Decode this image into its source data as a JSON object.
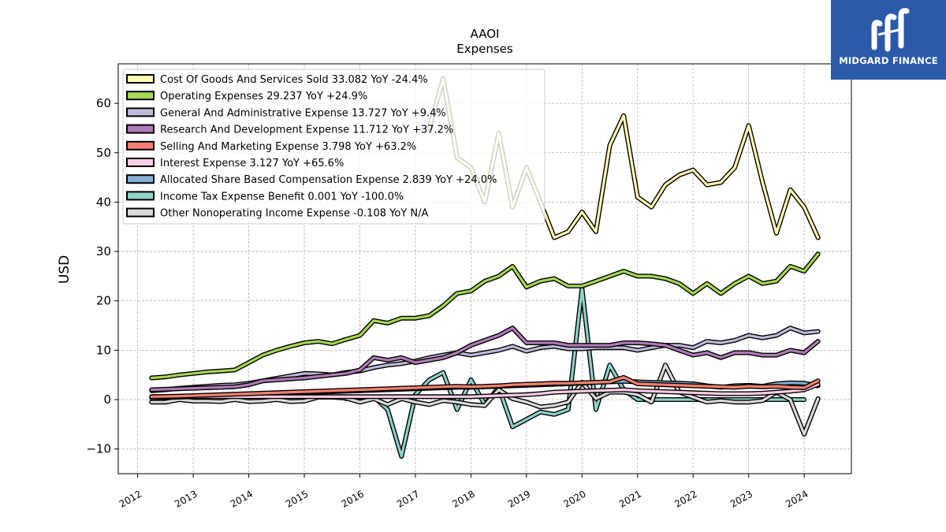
{
  "chart_data": {
    "type": "line",
    "title": "AAOI",
    "subtitle": "Expenses",
    "ylabel": "USD",
    "xlabel": "",
    "xlim": [
      2011.65,
      2024.85
    ],
    "ylim": [
      -15,
      68
    ],
    "yticks": [
      -10,
      0,
      10,
      20,
      30,
      40,
      50,
      60
    ],
    "ytick_labels": [
      "−10",
      "0",
      "10",
      "20",
      "30",
      "40",
      "50",
      "60"
    ],
    "xticks": [
      2012,
      2013,
      2014,
      2015,
      2016,
      2017,
      2018,
      2019,
      2020,
      2021,
      2022,
      2023,
      2024
    ],
    "grid": true,
    "legend_position": "top-left",
    "x": [
      2012.25,
      2012.5,
      2012.75,
      2013.0,
      2013.25,
      2013.5,
      2013.75,
      2014.0,
      2014.25,
      2014.5,
      2014.75,
      2015.0,
      2015.25,
      2015.5,
      2015.75,
      2016.0,
      2016.25,
      2016.5,
      2016.75,
      2017.0,
      2017.25,
      2017.5,
      2017.75,
      2018.0,
      2018.25,
      2018.5,
      2018.75,
      2019.0,
      2019.25,
      2019.5,
      2019.75,
      2020.0,
      2020.25,
      2020.5,
      2020.75,
      2021.0,
      2021.25,
      2021.5,
      2021.75,
      2022.0,
      2022.25,
      2022.5,
      2022.75,
      2023.0,
      2023.25,
      2023.5,
      2023.75,
      2024.0,
      2024.25
    ],
    "series": [
      {
        "name": "Cost Of Goods And Services Sold",
        "legend": "Cost Of Goods And Services Sold  33.082 YoY -24.4%",
        "color": "#ffffb3",
        "values": [
          null,
          null,
          null,
          null,
          null,
          null,
          null,
          null,
          null,
          null,
          null,
          null,
          null,
          null,
          null,
          null,
          null,
          null,
          null,
          null,
          55,
          65,
          49,
          47,
          40,
          54,
          39,
          47,
          40,
          32.8,
          34,
          38,
          34,
          51.5,
          57.5,
          41,
          39,
          43.5,
          45.5,
          46.5,
          43.5,
          44,
          47,
          55.5,
          44,
          33.7,
          42.5,
          39,
          32.8
        ]
      },
      {
        "name": "Operating Expenses",
        "legend": "Operating Expenses  29.237 YoY +24.9%",
        "color": "#a6d854",
        "values": [
          4.4,
          4.6,
          5.0,
          5.3,
          5.6,
          5.8,
          6.0,
          7.5,
          9.0,
          10.0,
          10.8,
          11.5,
          11.8,
          11.3,
          12.2,
          13.0,
          16.0,
          15.5,
          16.5,
          16.5,
          17.0,
          19.0,
          21.5,
          22.0,
          24.0,
          25.0,
          27.0,
          22.8,
          24.0,
          24.5,
          23.0,
          23.0,
          24.0,
          25.0,
          26.0,
          25.0,
          25.0,
          24.5,
          23.5,
          21.5,
          23.5,
          21.5,
          23.5,
          25.0,
          23.5,
          24.0,
          27.0,
          26.0,
          29.5
        ]
      },
      {
        "name": "General And Administrative Expense",
        "legend": "General And Administrative Expense  13.727 YoY +9.4%",
        "color": "#bebada",
        "values": [
          1.8,
          2.0,
          2.3,
          2.5,
          2.7,
          2.9,
          3.0,
          3.3,
          3.8,
          4.3,
          4.8,
          5.3,
          5.2,
          5.0,
          5.5,
          5.8,
          6.5,
          7.0,
          7.3,
          7.8,
          8.5,
          9.0,
          9.5,
          9.0,
          9.5,
          10.0,
          10.8,
          9.8,
          10.5,
          10.8,
          10.3,
          10.3,
          10.5,
          10.5,
          10.5,
          10.0,
          10.5,
          11.0,
          11.0,
          10.5,
          11.8,
          11.5,
          12.0,
          13.0,
          12.5,
          13.0,
          14.5,
          13.5,
          13.8
        ]
      },
      {
        "name": "Research And Development Expense",
        "legend": "Research And Development Expense  11.712 YoY +37.2%",
        "color": "#b07ab8",
        "values": [
          2.0,
          2.1,
          2.2,
          2.3,
          2.4,
          2.5,
          2.6,
          3.0,
          3.8,
          4.0,
          4.2,
          4.4,
          4.7,
          5.0,
          5.3,
          6.0,
          8.5,
          8.0,
          8.5,
          7.5,
          8.0,
          8.5,
          9.5,
          11.0,
          12.0,
          13.0,
          14.5,
          11.5,
          11.5,
          11.5,
          11.0,
          11.0,
          11.0,
          11.0,
          11.5,
          11.5,
          11.3,
          11.0,
          10.0,
          9.0,
          9.5,
          8.5,
          9.5,
          9.5,
          9.0,
          9.0,
          10.0,
          9.5,
          11.8
        ]
      },
      {
        "name": "Selling And Marketing Expense",
        "legend": "Selling And Marketing Expense  3.798 YoY +63.2%",
        "color": "#fb8072",
        "values": [
          0.6,
          0.65,
          0.7,
          0.8,
          0.9,
          1.0,
          1.1,
          1.2,
          1.3,
          1.4,
          1.5,
          1.6,
          1.7,
          1.8,
          1.9,
          2.0,
          2.1,
          2.2,
          2.3,
          2.4,
          2.5,
          2.6,
          2.7,
          2.6,
          2.7,
          2.8,
          3.0,
          3.1,
          3.2,
          3.3,
          3.3,
          3.4,
          3.5,
          3.6,
          4.5,
          3.2,
          3.1,
          3.0,
          2.9,
          2.8,
          2.7,
          2.6,
          2.5,
          2.7,
          2.6,
          2.7,
          2.5,
          2.4,
          3.8
        ]
      },
      {
        "name": "Interest Expense",
        "legend": "Interest Expense  3.127 YoY +65.6%",
        "color": "#fccde5",
        "values": [
          0.6,
          0.6,
          0.6,
          0.6,
          0.6,
          0.6,
          0.6,
          0.6,
          0.6,
          0.6,
          0.6,
          0.6,
          0.6,
          0.6,
          0.6,
          0.6,
          0.6,
          0.6,
          0.6,
          0.6,
          0.6,
          0.6,
          0.6,
          0.6,
          0.7,
          0.8,
          0.9,
          1.0,
          1.2,
          1.5,
          1.6,
          1.7,
          1.8,
          1.9,
          2.0,
          1.8,
          1.7,
          1.6,
          1.5,
          1.4,
          1.3,
          1.2,
          1.2,
          1.2,
          1.3,
          1.5,
          1.7,
          2.0,
          3.1
        ]
      },
      {
        "name": "Allocated Share Based Compensation Expense",
        "legend": "Allocated Share Based Compensation Expense  2.839 YoY +24.0%",
        "color": "#80b1d3",
        "values": [
          0.3,
          0.4,
          0.5,
          0.6,
          0.7,
          0.8,
          0.9,
          1.0,
          1.1,
          1.2,
          1.3,
          1.4,
          1.5,
          1.6,
          1.7,
          1.8,
          1.9,
          2.0,
          2.1,
          2.2,
          2.3,
          2.4,
          2.5,
          2.5,
          2.6,
          2.7,
          2.8,
          2.9,
          3.0,
          3.1,
          3.2,
          3.3,
          3.5,
          3.6,
          3.7,
          3.6,
          3.5,
          3.4,
          3.3,
          3.2,
          2.8,
          2.5,
          2.8,
          2.9,
          2.7,
          3.2,
          3.4,
          3.3,
          2.8
        ]
      },
      {
        "name": "Income Tax Expense Benefit",
        "legend": "Income Tax Expense Benefit  0.001 YoY -100.0%",
        "color": "#8dd3c7",
        "values": [
          null,
          null,
          null,
          null,
          null,
          null,
          null,
          null,
          null,
          null,
          null,
          null,
          null,
          null,
          0.2,
          0.4,
          0.6,
          -2.0,
          -11.5,
          1.0,
          4.0,
          5.5,
          -2.0,
          4.0,
          -1.0,
          2.5,
          -5.5,
          -4.0,
          -2.5,
          -3.0,
          -2.0,
          22.5,
          -2.0,
          7.0,
          2.0,
          0.0,
          0.0,
          0.0,
          0.0,
          0.0,
          0.0,
          0.0,
          0.0,
          0.0,
          0.0,
          0.0,
          0.0,
          0.0,
          null
        ]
      },
      {
        "name": "Other Nonoperating Income Expense",
        "legend": "Other Nonoperating Income Expense  -0.108 YoY N/A",
        "color": "#d9d9d9",
        "values": [
          -0.5,
          -0.5,
          0.0,
          -0.3,
          -0.3,
          -0.4,
          0.0,
          -0.4,
          -0.3,
          0.0,
          -0.4,
          -0.3,
          0.5,
          0.5,
          0.3,
          -0.5,
          0.2,
          -1.0,
          0.2,
          -0.5,
          -1.0,
          -0.2,
          -0.5,
          -1.0,
          -1.2,
          2.0,
          0.2,
          -0.5,
          -1.5,
          -1.2,
          -0.5,
          3.5,
          0.2,
          1.5,
          1.5,
          1.0,
          -0.5,
          7.0,
          1.5,
          0.5,
          -0.5,
          -0.2,
          -0.5,
          -0.5,
          -0.2,
          1.5,
          0.0,
          -7.0,
          0.2
        ]
      }
    ]
  },
  "logo": {
    "name": "MIDGARD FINANCE",
    "color": "#2a5aa8"
  }
}
